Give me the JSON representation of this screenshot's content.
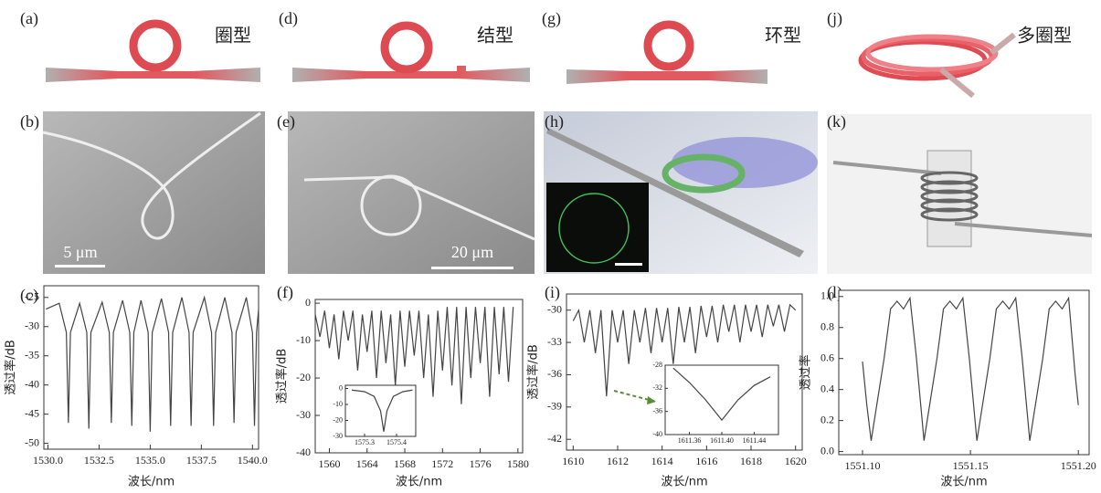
{
  "labels": [
    "(a)",
    "(b)",
    "(c)",
    "(d)",
    "(e)",
    "(f)",
    "(g)",
    "(h)",
    "(i)",
    "(j)",
    "(k)",
    "(l)"
  ],
  "captions": [
    "圈型",
    "结型",
    "环型",
    "多圈型"
  ],
  "scale_bars": [
    "5 μm",
    "20 μm"
  ],
  "chart_data": [
    {
      "type": "line",
      "xlabel": "波长/nm",
      "ylabel": "透过率/dB",
      "xlim": [
        1529.8,
        1540.3
      ],
      "xticks": [
        {
          "value": 1530,
          "label": "1530.0"
        },
        1532.5,
        {
          "value": 1535,
          "label": "1535.0"
        },
        1537.5,
        {
          "value": 1540,
          "label": "1540.0"
        }
      ],
      "ylim": [
        -51,
        -23
      ],
      "yticks": [
        -25,
        -30,
        -35,
        -40,
        -45,
        -50
      ],
      "x": [
        1529.9,
        1530.55,
        1530.9,
        1531.0,
        1531.1,
        1531.55,
        1531.9,
        1532.0,
        1532.1,
        1532.65,
        1533.0,
        1533.1,
        1533.2,
        1533.65,
        1534.0,
        1534.1,
        1534.2,
        1534.55,
        1534.9,
        1535.0,
        1535.1,
        1535.55,
        1535.9,
        1536.0,
        1536.1,
        1536.55,
        1536.9,
        1537.0,
        1537.1,
        1537.65,
        1538.0,
        1538.1,
        1538.2,
        1538.65,
        1539.0,
        1539.1,
        1539.2,
        1539.7,
        1540.0,
        1540.1,
        1540.2,
        1540.3
      ],
      "series": [
        {
          "color": "#444444",
          "values": [
            -27,
            -26,
            -31,
            -46.5,
            -31,
            -26,
            -31,
            -47.5,
            -31,
            -25.8,
            -31,
            -46.5,
            -31,
            -25.5,
            -31,
            -47,
            -31,
            -25.5,
            -31,
            -48,
            -31,
            -25.2,
            -31,
            -47,
            -31,
            -25,
            -31,
            -47,
            -31,
            -25,
            -31,
            -47,
            -31,
            -25,
            -31,
            -46.5,
            -31,
            -25,
            -31,
            -47,
            -31,
            -27
          ]
        }
      ]
    },
    {
      "type": "line",
      "xlabel": "波长/nm",
      "ylabel": "透过率/dB",
      "xlim": [
        1558.5,
        1580.5
      ],
      "xticks": [
        1560,
        1564,
        1568,
        1572,
        1576,
        1580
      ],
      "ylim": [
        -40,
        1
      ],
      "yticks": [
        0,
        -10,
        -20,
        -30,
        -40
      ],
      "x": [
        1558.5,
        1559,
        1559.5,
        1560,
        1560.5,
        1561,
        1561.5,
        1562,
        1562.5,
        1563,
        1563.5,
        1564,
        1564.5,
        1565,
        1565.5,
        1566,
        1566.5,
        1567,
        1567.5,
        1568,
        1568.5,
        1569,
        1569.5,
        1570,
        1570.5,
        1571,
        1571.5,
        1572,
        1572.5,
        1573,
        1573.5,
        1574,
        1574.5,
        1575,
        1575.5,
        1576,
        1576.5,
        1577,
        1577.5,
        1578,
        1578.5,
        1579,
        1579.5
      ],
      "series": [
        {
          "color": "#444444",
          "values": [
            -3,
            -9,
            -2,
            -12,
            -3,
            -15,
            -2,
            -10,
            -2,
            -18,
            -3,
            -13,
            -2,
            -20,
            -2,
            -16,
            -3,
            -22,
            -2,
            -17,
            -2,
            -14,
            -2,
            -20,
            -3,
            -25,
            -2,
            -18,
            -1,
            -22,
            -1,
            -27,
            -1,
            -20,
            -1,
            -16,
            -1,
            -25,
            -1,
            -19,
            -1,
            -21,
            -1
          ]
        }
      ]
    },
    {
      "type": "line",
      "xlabel": "波长/nm",
      "ylabel": "透过率/dB",
      "xlim": [
        1609.7,
        1620.3
      ],
      "xticks": [
        1610,
        1612,
        1614,
        1616,
        1618,
        1620
      ],
      "ylim": [
        -43,
        -28.5
      ],
      "yticks": [
        -30,
        -33,
        -36,
        -39,
        -42
      ],
      "x": [
        1610,
        1610.25,
        1610.5,
        1610.75,
        1611,
        1611.25,
        1611.5,
        1611.75,
        1612,
        1612.25,
        1612.5,
        1612.75,
        1613,
        1613.25,
        1613.5,
        1613.75,
        1614,
        1614.25,
        1614.5,
        1614.75,
        1615,
        1615.25,
        1615.5,
        1615.75,
        1616,
        1616.25,
        1616.5,
        1616.75,
        1617,
        1617.25,
        1617.5,
        1617.75,
        1618,
        1618.25,
        1618.5,
        1618.75,
        1619,
        1619.25,
        1619.5,
        1619.75,
        1620
      ],
      "series": [
        {
          "color": "#444444",
          "values": [
            -31,
            -30,
            -33,
            -30,
            -34,
            -30,
            -38,
            -30,
            -33,
            -30,
            -35,
            -30,
            -33,
            -29.8,
            -34,
            -29.8,
            -33,
            -29.8,
            -35,
            -29.7,
            -33,
            -29.7,
            -34,
            -29.6,
            -32.5,
            -29.6,
            -33,
            -29.5,
            -32,
            -29.5,
            -33,
            -29.5,
            -32,
            -29.5,
            -32.5,
            -29.5,
            -31.5,
            -29.5,
            -32,
            -29.5,
            -30
          ]
        }
      ]
    },
    {
      "type": "line",
      "xlabel": "波长/nm",
      "ylabel": "透过率",
      "xlim": [
        1551.089,
        1551.205
      ],
      "xticks": [
        {
          "value": 1551.1,
          "label": "1551.10"
        },
        1551.15,
        {
          "value": 1551.2,
          "label": "1551.20"
        }
      ],
      "ylim": [
        -0.02,
        1.04
      ],
      "yticks": [
        {
          "value": 0,
          "label": "0.0"
        },
        0.2,
        0.4,
        0.6,
        0.8,
        {
          "value": 1,
          "label": "1.0"
        }
      ],
      "x": [
        1551.1,
        1551.102,
        1551.104,
        1551.11,
        1551.113,
        1551.116,
        1551.119,
        1551.122,
        1551.125,
        1551.1285,
        1551.1345,
        1551.1375,
        1551.1405,
        1551.1435,
        1551.1465,
        1551.1495,
        1551.153,
        1551.159,
        1551.162,
        1551.165,
        1551.168,
        1551.171,
        1551.174,
        1551.1775,
        1551.1835,
        1551.1865,
        1551.1895,
        1551.1925,
        1551.1955,
        1551.1985,
        1551.2
      ],
      "series": [
        {
          "color": "#444444",
          "values": [
            0.58,
            0.3,
            0.07,
            0.6,
            0.92,
            0.97,
            0.92,
            0.99,
            0.6,
            0.07,
            0.6,
            0.92,
            0.97,
            0.92,
            0.99,
            0.6,
            0.07,
            0.6,
            0.92,
            0.97,
            0.92,
            0.99,
            0.6,
            0.07,
            0.6,
            0.92,
            0.97,
            0.92,
            0.99,
            0.5,
            0.3
          ]
        }
      ]
    },
    {
      "type": "line",
      "xlim": [
        1575.24,
        1575.46
      ],
      "xticks": [
        1575.3,
        1575.4
      ],
      "ylim": [
        -30,
        2
      ],
      "yticks": [
        0,
        -10,
        -20,
        -30
      ],
      "x": [
        1575.26,
        1575.3,
        1575.33,
        1575.35,
        1575.36,
        1575.37,
        1575.39,
        1575.42,
        1575.45
      ],
      "series": [
        {
          "color": "#444444",
          "values": [
            -1,
            -2,
            -5,
            -14,
            -27,
            -14,
            -5,
            -2,
            -1
          ]
        }
      ]
    },
    {
      "type": "line",
      "xlim": [
        1611.33,
        1611.47
      ],
      "xticks": [
        1611.36,
        {
          "value": 1611.4,
          "label": "1611.40"
        },
        1611.44
      ],
      "ylim": [
        -40,
        -28
      ],
      "yticks": [
        -28,
        -32,
        -36,
        -40
      ],
      "x": [
        1611.34,
        1611.36,
        1611.38,
        1611.4,
        1611.42,
        1611.44,
        1611.46
      ],
      "series": [
        {
          "color": "#444444",
          "values": [
            -28.5,
            -31,
            -34,
            -37.5,
            -34,
            -31.5,
            -30
          ]
        }
      ]
    }
  ]
}
